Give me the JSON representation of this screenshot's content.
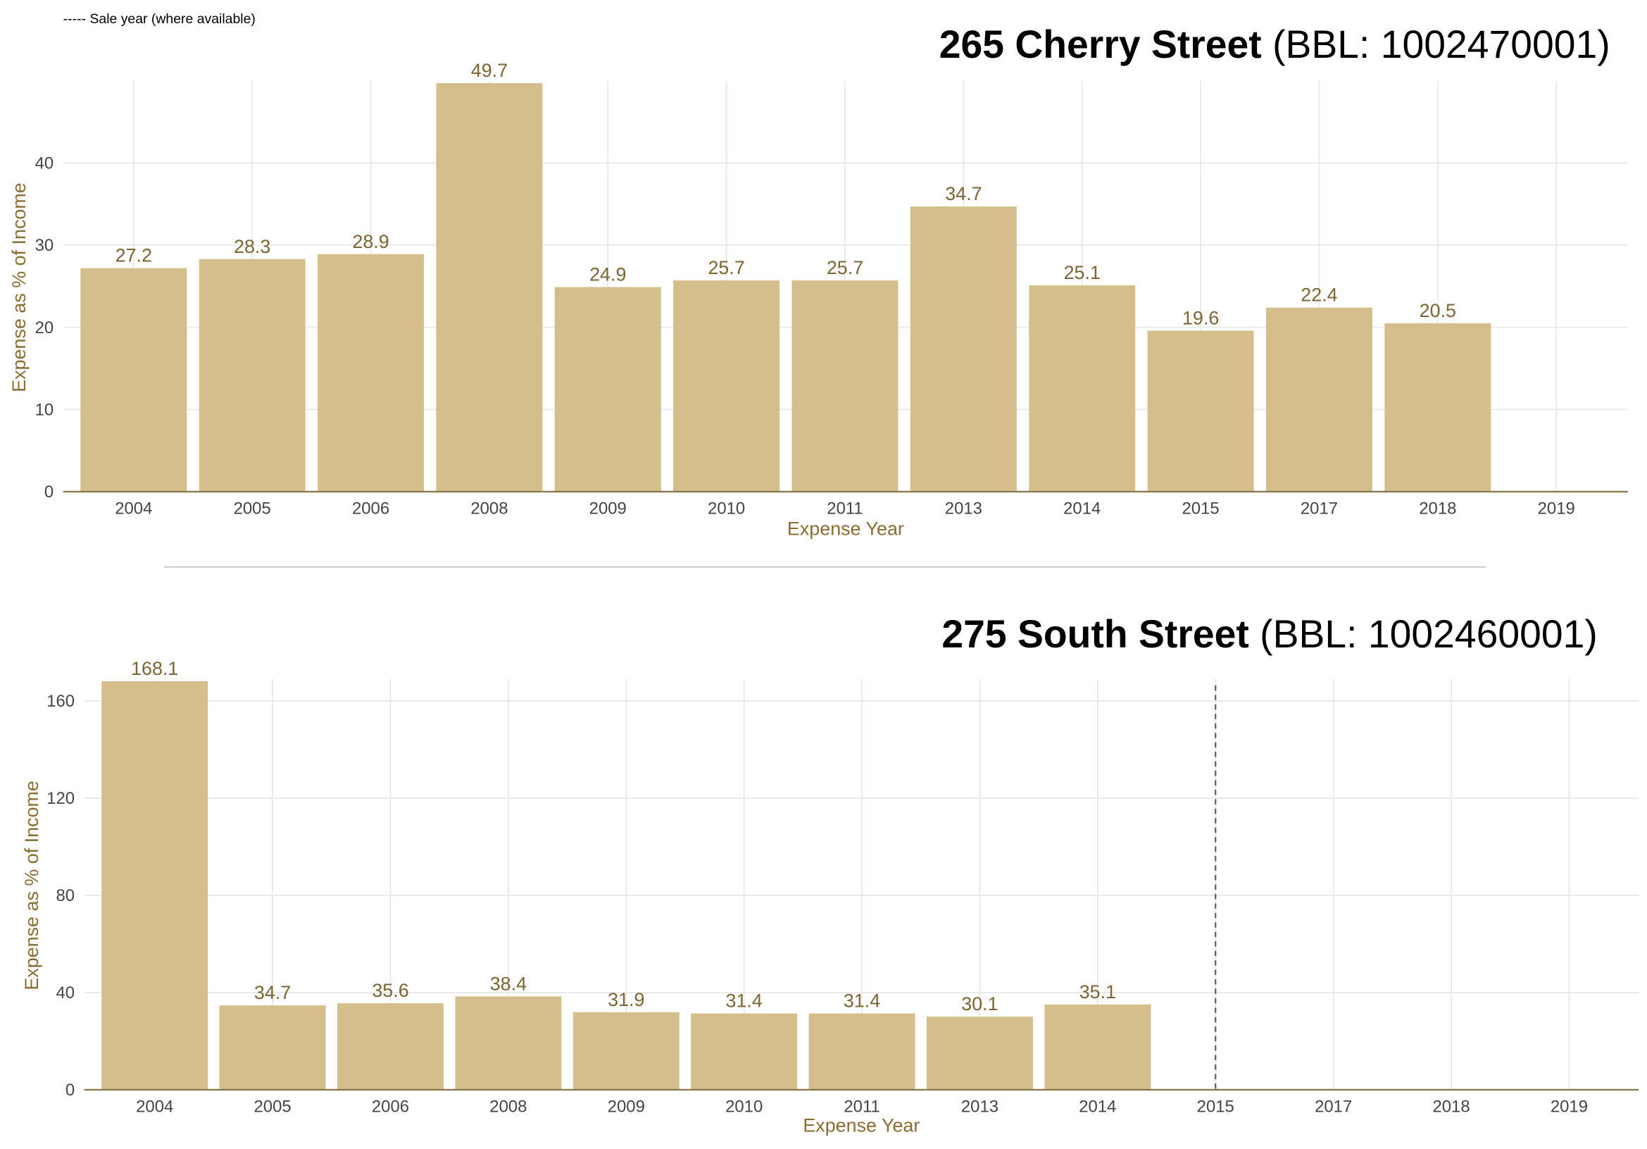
{
  "legend_note": "----- Sale year (where available)",
  "colors": {
    "bar": "#d4bf8c",
    "label": "#7a6533",
    "axis": "#8a7a50",
    "grid": "#e8e8e8",
    "sale_line": "#555555"
  },
  "chart_data": [
    {
      "type": "bar",
      "title": {
        "name": "265 Cherry Street",
        "bbl": "(BBL: 1002470001)"
      },
      "xlabel": "Expense Year",
      "ylabel": "Expense as % of Income",
      "categories": [
        "2004",
        "2005",
        "2006",
        "2008",
        "2009",
        "2010",
        "2011",
        "2013",
        "2014",
        "2015",
        "2017",
        "2018",
        "2019"
      ],
      "values": [
        27.2,
        28.3,
        28.9,
        49.7,
        24.9,
        25.7,
        25.7,
        34.7,
        25.1,
        19.6,
        22.4,
        20.5,
        null
      ],
      "value_labels": [
        "27.2",
        "28.3",
        "28.9",
        "49.7",
        "24.9",
        "25.7",
        "25.7",
        "34.7",
        "25.1",
        "19.6",
        "22.4",
        "20.5",
        ""
      ],
      "yticks": [
        0,
        10,
        20,
        30,
        40
      ],
      "ylim": [
        0,
        49.7
      ],
      "sale_year": null,
      "grid": true
    },
    {
      "type": "bar",
      "title": {
        "name": "275 South Street",
        "bbl": "(BBL: 1002460001)"
      },
      "xlabel": "Expense Year",
      "ylabel": "Expense as % of Income",
      "categories": [
        "2004",
        "2005",
        "2006",
        "2008",
        "2009",
        "2010",
        "2011",
        "2013",
        "2014",
        "2015",
        "2017",
        "2018",
        "2019"
      ],
      "values": [
        168.1,
        34.7,
        35.6,
        38.4,
        31.9,
        31.4,
        31.4,
        30.1,
        35.1,
        null,
        null,
        null,
        null
      ],
      "value_labels": [
        "168.1",
        "34.7",
        "35.6",
        "38.4",
        "31.9",
        "31.4",
        "31.4",
        "30.1",
        "35.1",
        "",
        "",
        "",
        ""
      ],
      "yticks": [
        0,
        40,
        80,
        120,
        160
      ],
      "ylim": [
        0,
        168.1
      ],
      "sale_year": "2015",
      "grid": true
    }
  ]
}
